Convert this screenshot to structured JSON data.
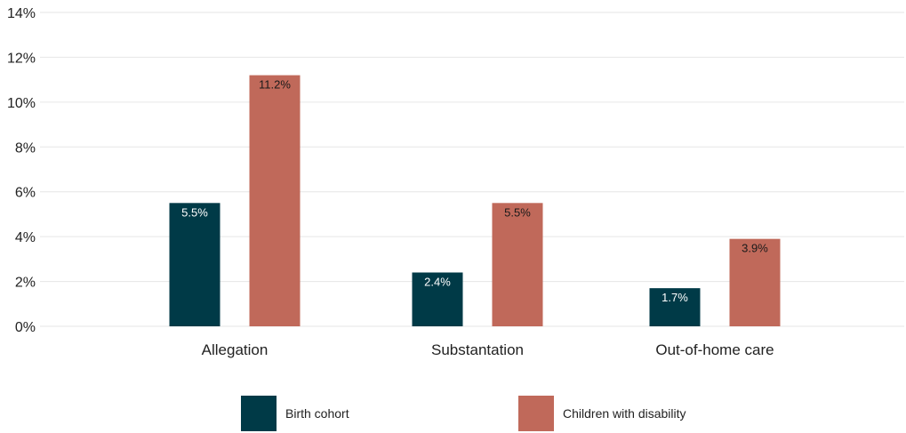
{
  "chart_data": {
    "type": "bar",
    "categories": [
      "Allegation",
      "Substantation",
      "Out-of-home care"
    ],
    "series": [
      {
        "name": "Birth cohort",
        "values": [
          5.5,
          2.4,
          1.7
        ],
        "labels": [
          "5.5%",
          "2.4%",
          "1.7%"
        ],
        "color": "#003a47",
        "label_color": "#ffffff"
      },
      {
        "name": "Children with disability",
        "values": [
          11.2,
          5.5,
          3.9
        ],
        "labels": [
          "11.2%",
          "5.5%",
          "3.9%"
        ],
        "color": "#c0695a",
        "label_color": "#1a1a1a"
      }
    ],
    "y_ticks": [
      "0%",
      "2%",
      "4%",
      "6%",
      "8%",
      "10%",
      "12%",
      "14%"
    ],
    "ylim": [
      0,
      14
    ],
    "grid": true,
    "legend_position": "bottom"
  }
}
